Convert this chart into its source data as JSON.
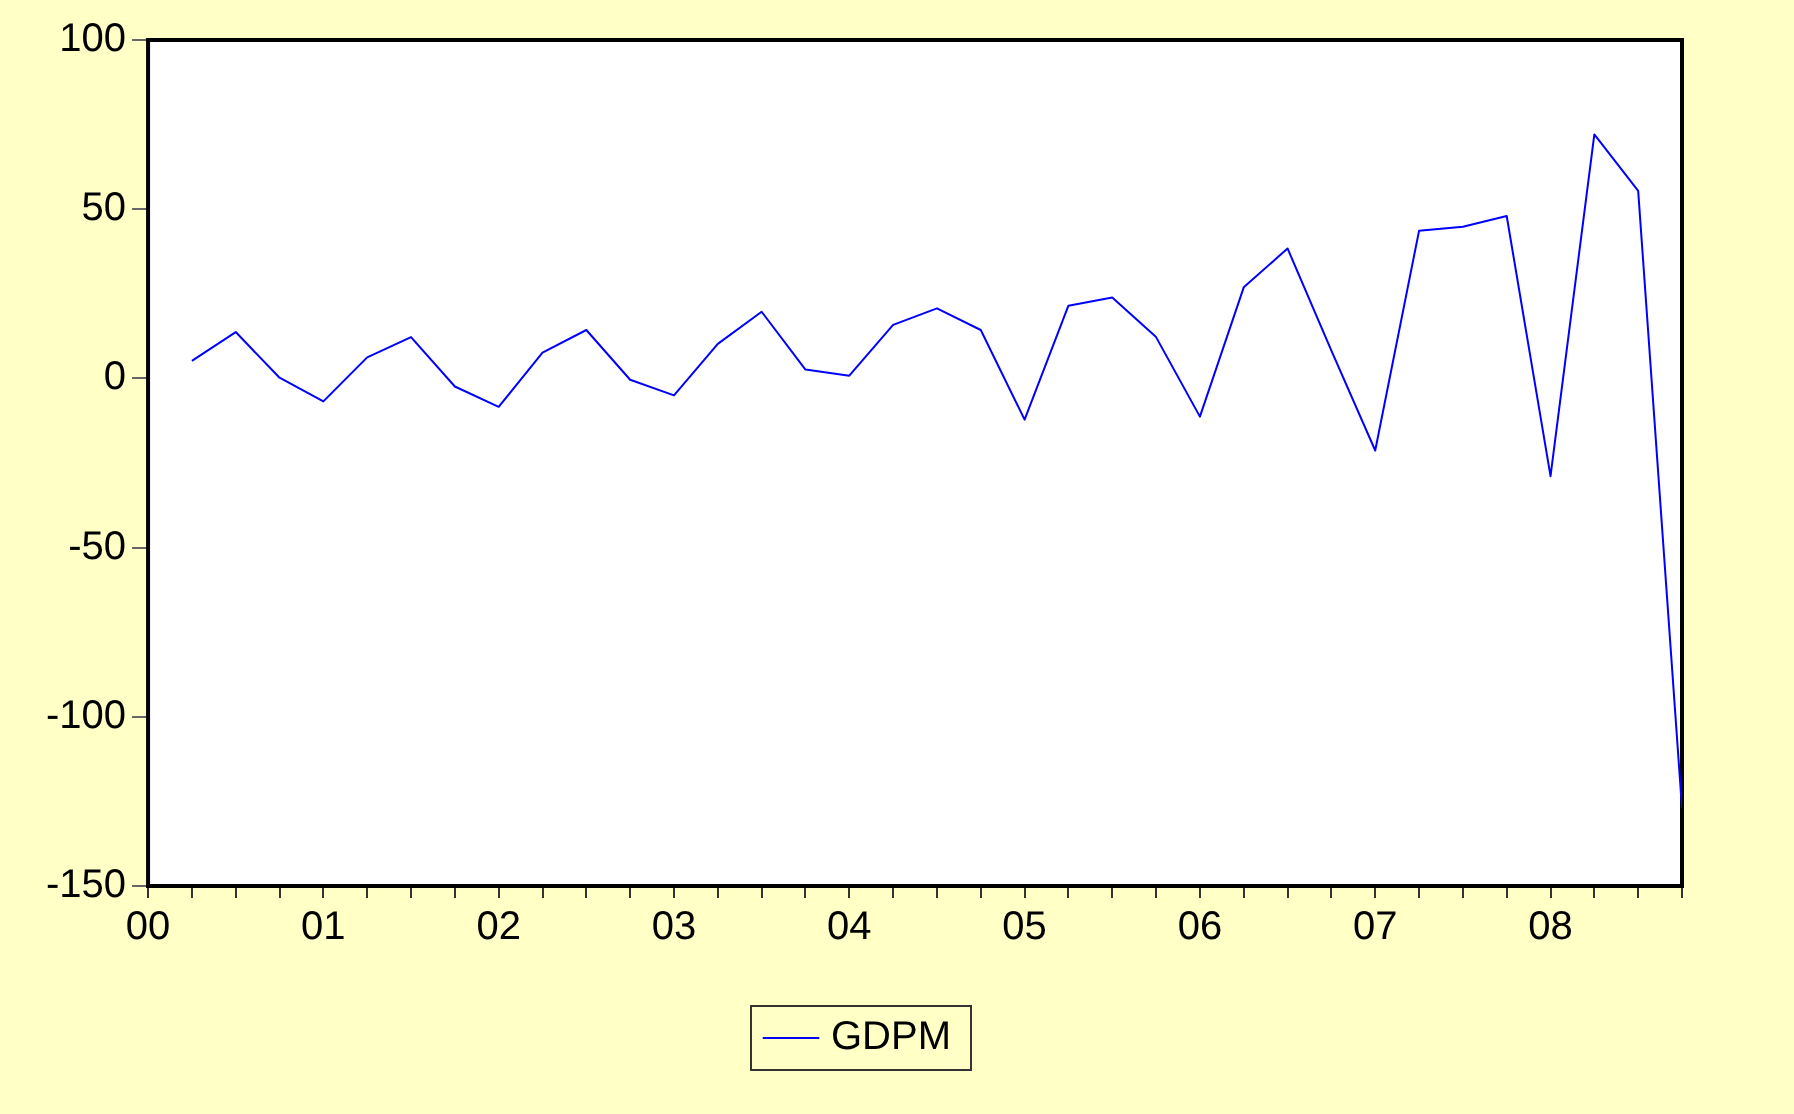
{
  "chart_data": {
    "type": "line",
    "x": [
      2000.25,
      2000.5,
      2000.75,
      2001,
      2001.25,
      2001.5,
      2001.75,
      2002,
      2002.25,
      2002.5,
      2002.75,
      2003,
      2003.25,
      2003.5,
      2003.75,
      2004,
      2004.25,
      2004.5,
      2004.75,
      2005,
      2005.25,
      2005.5,
      2005.75,
      2006,
      2006.25,
      2006.5,
      2006.75,
      2007,
      2007.25,
      2007.5,
      2007.75,
      2008,
      2008.25,
      2008.5,
      2008.75
    ],
    "series": [
      {
        "name": "GDPM",
        "color": "#0000ff",
        "values": [
          5.2,
          13.7,
          0.2,
          -6.8,
          6.2,
          12.2,
          -2.4,
          -8.4,
          7.6,
          14.3,
          -0.4,
          -5,
          10.2,
          19.7,
          2.6,
          0.8,
          15.8,
          20.7,
          14.3,
          -12.2,
          21.5,
          23.9,
          12.2,
          -11.3,
          26.9,
          38.4,
          8.2,
          -21.3,
          43.6,
          44.8,
          48,
          -28.9,
          72.1,
          55.4,
          -127
        ]
      }
    ],
    "xlim": [
      2000,
      2008.75
    ],
    "xticks": [
      {
        "value": 2000,
        "label": "00"
      },
      {
        "value": 2000.25,
        "label": null
      },
      {
        "value": 2000.5,
        "label": null
      },
      {
        "value": 2000.75,
        "label": null
      },
      {
        "value": 2001,
        "label": "01"
      },
      {
        "value": 2001.25,
        "label": null
      },
      {
        "value": 2001.5,
        "label": null
      },
      {
        "value": 2001.75,
        "label": null
      },
      {
        "value": 2002,
        "label": "02"
      },
      {
        "value": 2002.25,
        "label": null
      },
      {
        "value": 2002.5,
        "label": null
      },
      {
        "value": 2002.75,
        "label": null
      },
      {
        "value": 2003,
        "label": "03"
      },
      {
        "value": 2003.25,
        "label": null
      },
      {
        "value": 2003.5,
        "label": null
      },
      {
        "value": 2003.75,
        "label": null
      },
      {
        "value": 2004,
        "label": "04"
      },
      {
        "value": 2004.25,
        "label": null
      },
      {
        "value": 2004.5,
        "label": null
      },
      {
        "value": 2004.75,
        "label": null
      },
      {
        "value": 2005,
        "label": "05"
      },
      {
        "value": 2005.25,
        "label": null
      },
      {
        "value": 2005.5,
        "label": null
      },
      {
        "value": 2005.75,
        "label": null
      },
      {
        "value": 2006,
        "label": "06"
      },
      {
        "value": 2006.25,
        "label": null
      },
      {
        "value": 2006.5,
        "label": null
      },
      {
        "value": 2006.75,
        "label": null
      },
      {
        "value": 2007,
        "label": "07"
      },
      {
        "value": 2007.25,
        "label": null
      },
      {
        "value": 2007.5,
        "label": null
      },
      {
        "value": 2007.75,
        "label": null
      },
      {
        "value": 2008,
        "label": "08"
      },
      {
        "value": 2008.25,
        "label": null
      },
      {
        "value": 2008.5,
        "label": null
      },
      {
        "value": 2008.75,
        "label": null
      }
    ],
    "ylim": [
      -150,
      100
    ],
    "yticks": [
      -150,
      -100,
      -50,
      0,
      50,
      100
    ],
    "grid": false,
    "legend": "bottom",
    "marker": "none",
    "line_style": "solid"
  }
}
